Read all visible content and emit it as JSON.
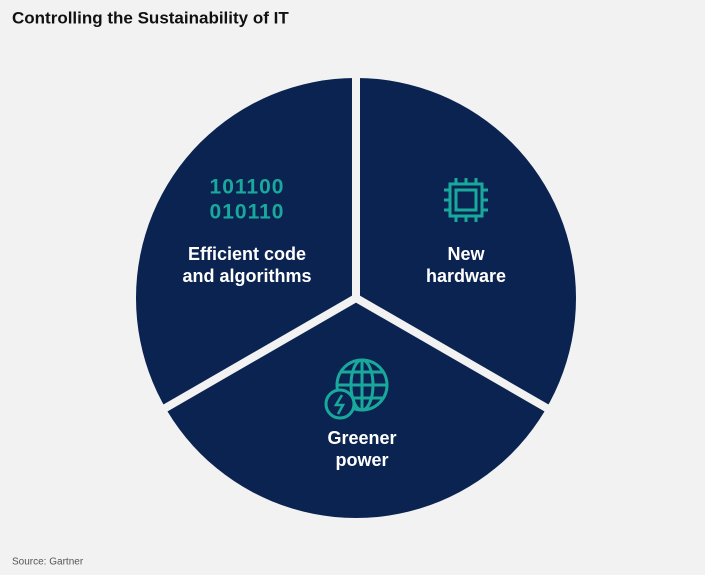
{
  "title": "Controlling the Sustainability of IT",
  "segments": [
    {
      "label_lines": [
        "Efficient code",
        "and algorithms"
      ],
      "icon_text": [
        "101100",
        "010110"
      ]
    },
    {
      "label_lines": [
        "New",
        "hardware"
      ]
    },
    {
      "label_lines": [
        "Greener",
        "power"
      ]
    }
  ],
  "source": "Source: Gartner"
}
